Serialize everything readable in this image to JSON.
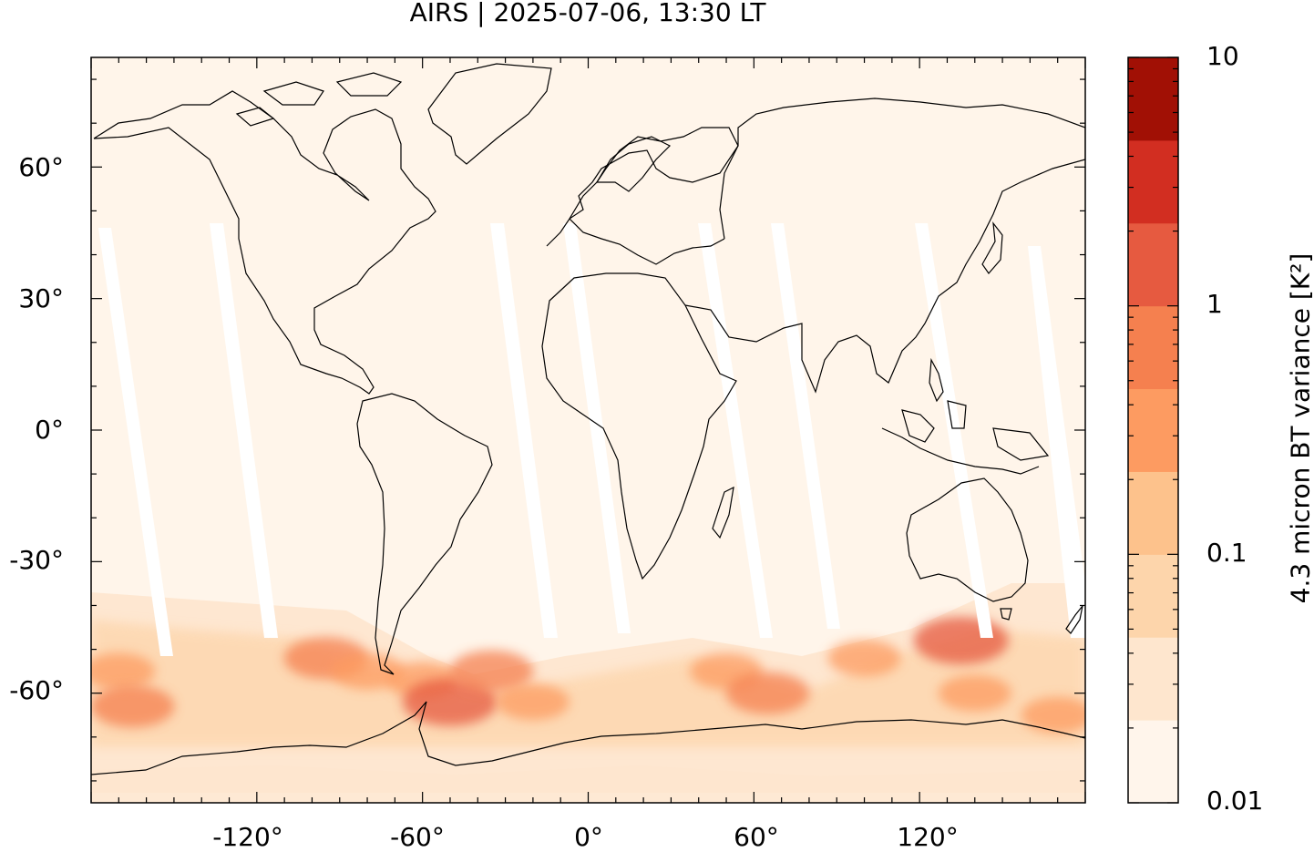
{
  "title": "AIRS | 2025-07-06, 13:30 LT",
  "map": {
    "projection": "equirectangular",
    "lon_range": [
      -180,
      180
    ],
    "lat_range": [
      -85,
      85
    ],
    "background_color": "#fff5ea",
    "coastline_color": "#000000",
    "data_gaps": "white swath gaps between orbit passes",
    "x_ticks": [
      {
        "value": -120,
        "label": "-120°"
      },
      {
        "value": -60,
        "label": "-60°"
      },
      {
        "value": 0,
        "label": "0°"
      },
      {
        "value": 60,
        "label": "60°"
      },
      {
        "value": 120,
        "label": "120°"
      }
    ],
    "y_ticks": [
      {
        "value": 60,
        "label": "60°"
      },
      {
        "value": 30,
        "label": "30°"
      },
      {
        "value": 0,
        "label": "0°"
      },
      {
        "value": -30,
        "label": "-30°"
      },
      {
        "value": -60,
        "label": "-60°"
      }
    ],
    "hotspots": [
      {
        "lon": -170,
        "lat": -55,
        "level": 2
      },
      {
        "lon": -165,
        "lat": -63,
        "level": 3
      },
      {
        "lon": -95,
        "lat": -52,
        "level": 3
      },
      {
        "lon": -80,
        "lat": -55,
        "level": 2
      },
      {
        "lon": -60,
        "lat": -57,
        "level": 2
      },
      {
        "lon": -50,
        "lat": -62,
        "level": 4
      },
      {
        "lon": -35,
        "lat": -55,
        "level": 3
      },
      {
        "lon": -20,
        "lat": -62,
        "level": 2
      },
      {
        "lon": 50,
        "lat": -55,
        "level": 2
      },
      {
        "lon": 65,
        "lat": -60,
        "level": 3
      },
      {
        "lon": 100,
        "lat": -52,
        "level": 2
      },
      {
        "lon": 135,
        "lat": -48,
        "level": 4
      },
      {
        "lon": 140,
        "lat": -60,
        "level": 2
      },
      {
        "lon": 170,
        "lat": -65,
        "level": 2
      }
    ]
  },
  "colorbar": {
    "label": "4.3 micron BT variance [K²]",
    "scale": "log",
    "range": [
      0.01,
      10
    ],
    "tick_labels": [
      "10",
      "1",
      "0.1",
      "0.01"
    ],
    "tick_values": [
      10,
      1,
      0.1,
      0.01
    ],
    "colors": [
      "#fff5eb",
      "#fee6ce",
      "#fdd5ab",
      "#fdc28c",
      "#fd9b61",
      "#f5804f",
      "#e65a40",
      "#d22e21",
      "#a11005"
    ]
  }
}
